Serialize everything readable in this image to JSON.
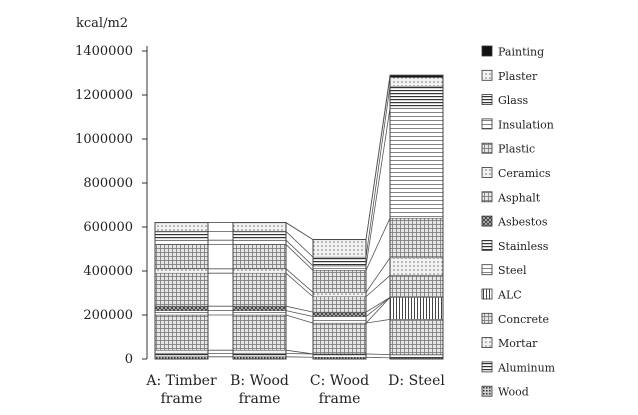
{
  "chart_data": {
    "type": "bar",
    "stacked": true,
    "title": "",
    "ylabel": "kcal/m2",
    "xlabel": "",
    "ylim": [
      0,
      1400000
    ],
    "yticks": [
      0,
      200000,
      400000,
      600000,
      800000,
      1000000,
      1200000,
      1400000
    ],
    "ytick_labels": [
      "0",
      "200000",
      "400000",
      "600000",
      "800000",
      "1000000",
      "1200000",
      "1400000"
    ],
    "categories": [
      [
        "A: Timber",
        "frame"
      ],
      [
        "B: Wood",
        "frame"
      ],
      [
        "C: Wood",
        "frame"
      ],
      [
        "D: Steel",
        ""
      ]
    ],
    "grid": false,
    "legend_position": "right",
    "series": [
      {
        "name": "Wood",
        "values": [
          10000,
          10000,
          8000,
          5000
        ],
        "pattern": "dense",
        "color": "#555555"
      },
      {
        "name": "Aluminum",
        "values": [
          15000,
          15000,
          15000,
          15000
        ],
        "pattern": "hstripe",
        "color": "#444444"
      },
      {
        "name": "Mortar",
        "values": [
          15000,
          15000,
          0,
          0
        ],
        "pattern": "dots",
        "color": "#888888"
      },
      {
        "name": "Concrete",
        "values": [
          160000,
          160000,
          140000,
          160000
        ],
        "pattern": "grid",
        "color": "#666666"
      },
      {
        "name": "ALC",
        "values": [
          0,
          0,
          0,
          100000
        ],
        "pattern": "vstripe",
        "color": "#777777"
      },
      {
        "name": "Steel",
        "values": [
          20000,
          20000,
          30000,
          0
        ],
        "pattern": "hline",
        "color": "#888888"
      },
      {
        "name": "Stainless",
        "values": [
          0,
          0,
          0,
          0
        ],
        "pattern": "hstripe",
        "color": "#666666"
      },
      {
        "name": "Asbestos",
        "values": [
          20000,
          20000,
          20000,
          0
        ],
        "pattern": "cross",
        "color": "#555555"
      },
      {
        "name": "Asphalt",
        "values": [
          150000,
          150000,
          70000,
          100000
        ],
        "pattern": "grid",
        "color": "#777777"
      },
      {
        "name": "Ceramics",
        "values": [
          20000,
          20000,
          20000,
          80000
        ],
        "pattern": "dots",
        "color": "#666666"
      },
      {
        "name": "Plastic",
        "values": [
          110000,
          110000,
          100000,
          180000
        ],
        "pattern": "grid",
        "color": "#555555"
      },
      {
        "name": "Insulation",
        "values": [
          20000,
          20000,
          20000,
          500000
        ],
        "pattern": "hline",
        "color": "#777777"
      },
      {
        "name": "Glass",
        "values": [
          40000,
          40000,
          40000,
          100000
        ],
        "pattern": "hstripe",
        "color": "#555555"
      },
      {
        "name": "Plaster",
        "values": [
          40000,
          40000,
          80000,
          40000
        ],
        "pattern": "dots",
        "color": "#999999"
      },
      {
        "name": "Painting",
        "values": [
          0,
          0,
          0,
          10000
        ],
        "pattern": "solid",
        "color": "#111111"
      }
    ]
  }
}
